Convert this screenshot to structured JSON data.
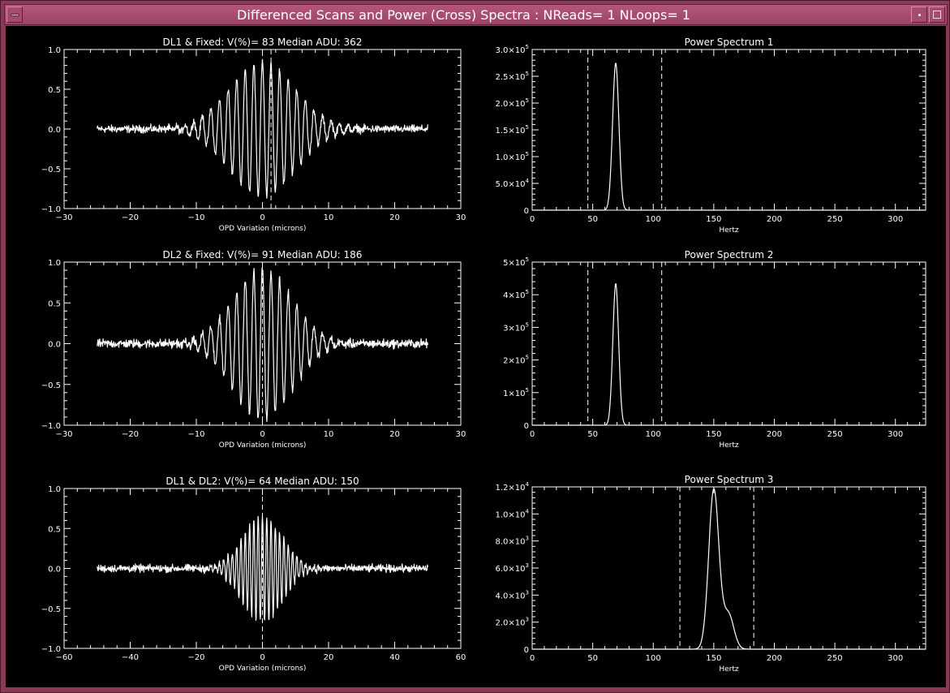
{
  "window": {
    "title": "Differenced Scans and Power (Cross) Spectra : NReads= 1  NLoops= 1"
  },
  "icons": {
    "menu": "window-menu-icon",
    "minimize": "minimize-icon",
    "maximize": "maximize-icon"
  },
  "colors": {
    "window_frame": "#8a3a56",
    "title_bar": "#a44c6e",
    "plot_background": "#000000",
    "plot_foreground": "#ffffff"
  },
  "chart_data": [
    {
      "type": "line",
      "title": "DL1 & Fixed: V(%)= 83 Median ADU: 362",
      "xlabel": "OPD Variation (microns)",
      "ylabel": "",
      "xlim": [
        -30,
        30
      ],
      "ylim": [
        -1.0,
        1.0
      ],
      "xticks": [
        -30,
        -20,
        -10,
        0,
        10,
        20,
        30
      ],
      "xtick_labels": [
        "−30",
        "−20",
        "−10",
        "0",
        "10",
        "20",
        "30"
      ],
      "yticks": [
        -1.0,
        -0.5,
        0.0,
        0.5,
        1.0
      ],
      "ytick_labels": [
        "−1.0",
        "−0.5",
        "0.0",
        "0.5",
        "1.0"
      ],
      "vlines": [
        1.3
      ],
      "signal": {
        "kind": "fringe",
        "x_range": [
          -25,
          25
        ],
        "center": 0,
        "amplitude": 0.85,
        "envelope_sigma": 5.0,
        "period": 1.3,
        "noise": 0.07
      }
    },
    {
      "type": "line",
      "title": "Power Spectrum 1",
      "xlabel": "Hertz",
      "ylabel": "",
      "xlim": [
        0,
        325
      ],
      "ylim": [
        0,
        300000
      ],
      "xticks": [
        0,
        50,
        100,
        150,
        200,
        250,
        300
      ],
      "xtick_labels": [
        "0",
        "50",
        "100",
        "150",
        "200",
        "250",
        "300"
      ],
      "yticks": [
        0,
        50000,
        100000,
        150000,
        200000,
        250000,
        300000
      ],
      "ytick_labels": [
        {
          "mant": "0",
          "exp": ""
        },
        {
          "mant": "5.0×10",
          "exp": "4"
        },
        {
          "mant": "1.0×10",
          "exp": "5"
        },
        {
          "mant": "1.5×10",
          "exp": "5"
        },
        {
          "mant": "2.0×10",
          "exp": "5"
        },
        {
          "mant": "2.5×10",
          "exp": "5"
        },
        {
          "mant": "3.0×10",
          "exp": "5"
        }
      ],
      "vlines": [
        46,
        107
      ],
      "peaks": [
        {
          "center": 69,
          "height": 275000,
          "width": 2.6
        }
      ]
    },
    {
      "type": "line",
      "title": "DL2 & Fixed: V(%)= 91 Median ADU: 186",
      "xlabel": "OPD Variation (microns)",
      "ylabel": "",
      "xlim": [
        -30,
        30
      ],
      "ylim": [
        -1.0,
        1.0
      ],
      "xticks": [
        -30,
        -20,
        -10,
        0,
        10,
        20,
        30
      ],
      "xtick_labels": [
        "−30",
        "−20",
        "−10",
        "0",
        "10",
        "20",
        "30"
      ],
      "yticks": [
        -1.0,
        -0.5,
        0.0,
        0.5,
        1.0
      ],
      "ytick_labels": [
        "−1.0",
        "−0.5",
        "0.0",
        "0.5",
        "1.0"
      ],
      "vlines": [
        0
      ],
      "signal": {
        "kind": "fringe",
        "x_range": [
          -25,
          25
        ],
        "center": 0,
        "amplitude": 0.92,
        "envelope_sigma": 4.5,
        "period": 1.3,
        "noise": 0.08
      }
    },
    {
      "type": "line",
      "title": "Power Spectrum 2",
      "xlabel": "Hertz",
      "ylabel": "",
      "xlim": [
        0,
        325
      ],
      "ylim": [
        0,
        500000
      ],
      "xticks": [
        0,
        50,
        100,
        150,
        200,
        250,
        300
      ],
      "xtick_labels": [
        "0",
        "50",
        "100",
        "150",
        "200",
        "250",
        "300"
      ],
      "yticks": [
        0,
        100000,
        200000,
        300000,
        400000,
        500000
      ],
      "ytick_labels": [
        {
          "mant": "0",
          "exp": ""
        },
        {
          "mant": "1×10",
          "exp": "5"
        },
        {
          "mant": "2×10",
          "exp": "5"
        },
        {
          "mant": "3×10",
          "exp": "5"
        },
        {
          "mant": "4×10",
          "exp": "5"
        },
        {
          "mant": "5×10",
          "exp": "5"
        }
      ],
      "vlines": [
        46,
        107
      ],
      "peaks": [
        {
          "center": 69,
          "height": 435000,
          "width": 2.4
        }
      ]
    },
    {
      "type": "line",
      "title": "DL1 & DL2: V(%)= 64 Median ADU: 150",
      "xlabel": "OPD Variation (microns)",
      "ylabel": "",
      "xlim": [
        -60,
        60
      ],
      "ylim": [
        -1.0,
        1.0
      ],
      "xticks": [
        -60,
        -40,
        -20,
        0,
        20,
        40,
        60
      ],
      "xtick_labels": [
        "−60",
        "−40",
        "−20",
        "0",
        "20",
        "40",
        "60"
      ],
      "yticks": [
        -1.0,
        -0.5,
        0.0,
        0.5,
        1.0
      ],
      "ytick_labels": [
        "−1.0",
        "−0.5",
        "0.0",
        "0.5",
        "1.0"
      ],
      "vlines": [
        0
      ],
      "signal": {
        "kind": "fringe",
        "x_range": [
          -50,
          50
        ],
        "center": 0,
        "amplitude": 0.68,
        "envelope_sigma": 6.0,
        "period": 1.3,
        "noise": 0.07
      }
    },
    {
      "type": "line",
      "title": "Power Spectrum 3",
      "xlabel": "Hertz",
      "ylabel": "",
      "xlim": [
        0,
        325
      ],
      "ylim": [
        0,
        12000
      ],
      "xticks": [
        0,
        50,
        100,
        150,
        200,
        250,
        300
      ],
      "xtick_labels": [
        "0",
        "50",
        "100",
        "150",
        "200",
        "250",
        "300"
      ],
      "yticks": [
        0,
        2000,
        4000,
        6000,
        8000,
        10000,
        12000
      ],
      "ytick_labels": [
        {
          "mant": "0",
          "exp": ""
        },
        {
          "mant": "2.0×10",
          "exp": "3"
        },
        {
          "mant": "4.0×10",
          "exp": "3"
        },
        {
          "mant": "6.0×10",
          "exp": "3"
        },
        {
          "mant": "8.0×10",
          "exp": "3"
        },
        {
          "mant": "1.0×10",
          "exp": "4"
        },
        {
          "mant": "1.2×10",
          "exp": "4"
        }
      ],
      "vlines": [
        122,
        183
      ],
      "peaks": [
        {
          "center": 150,
          "height": 11800,
          "width": 4.2
        },
        {
          "center": 162,
          "height": 2600,
          "width": 4.5
        }
      ]
    }
  ]
}
